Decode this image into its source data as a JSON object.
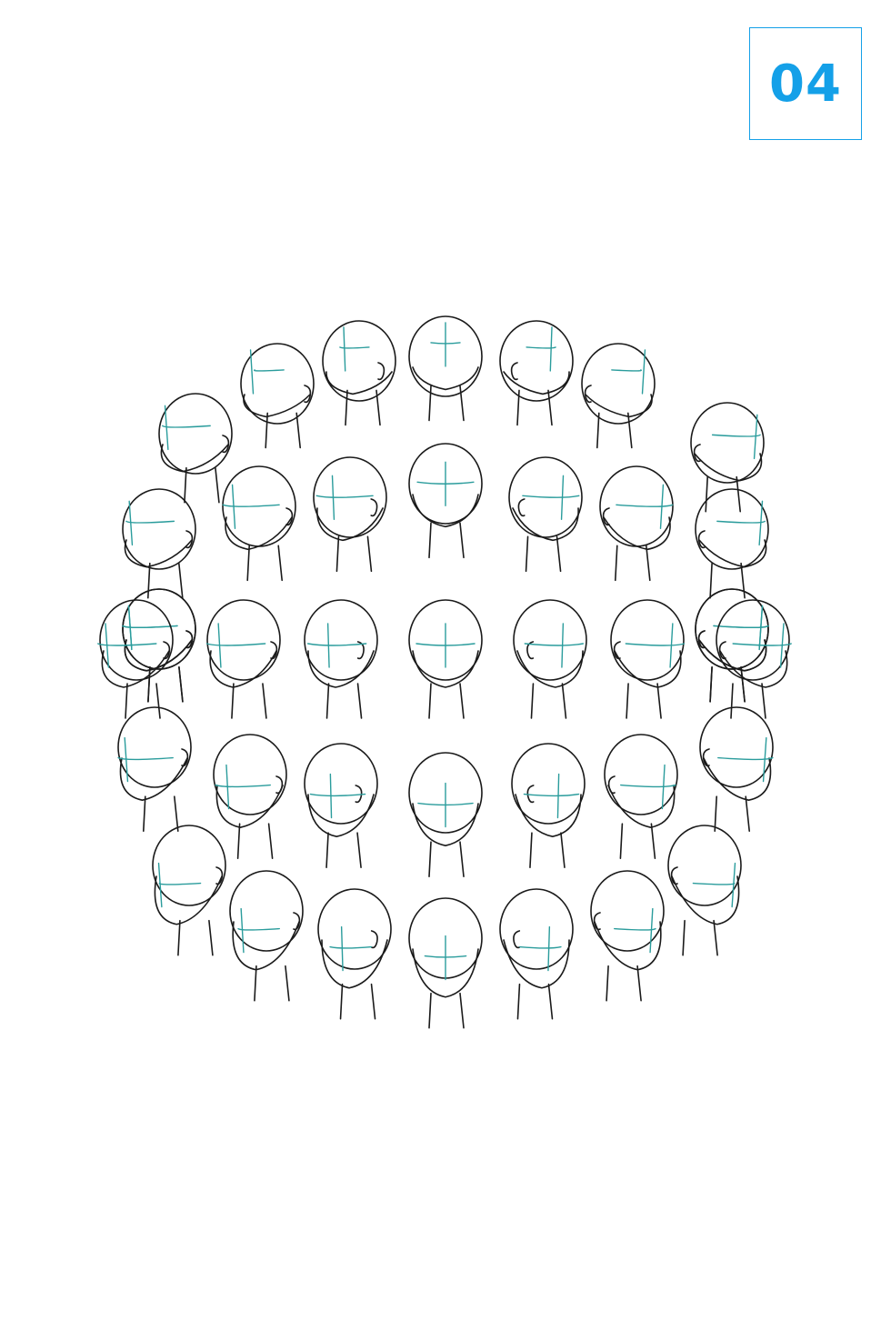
{
  "badge": {
    "number": "04",
    "color": "#14a0e8"
  },
  "diagram": {
    "subject": "head-angle-reference-sphere",
    "line_color": "#1a1a1a",
    "guide_color": "#2a9c9c",
    "rows": [
      {
        "yaw": [
          -60,
          -30,
          0,
          30,
          60
        ],
        "pitch": 60
      },
      {
        "yaw": [
          -100,
          -75,
          75,
          100
        ],
        "pitch": 35
      },
      {
        "yaw": [
          -60,
          -35,
          0,
          35,
          60
        ],
        "pitch": 15
      },
      {
        "yaw": [
          -80,
          -80,
          80,
          80
        ],
        "pitch": 20
      },
      {
        "yaw": [
          -90,
          -55,
          -25,
          0,
          25,
          55,
          90
        ],
        "pitch": 0
      },
      {
        "yaw": [
          -75,
          -50,
          -20,
          0,
          20,
          50,
          75
        ],
        "pitch": -20
      },
      {
        "yaw": [
          -80,
          -55,
          -25,
          0,
          25,
          55,
          80
        ],
        "pitch": -45
      }
    ]
  }
}
